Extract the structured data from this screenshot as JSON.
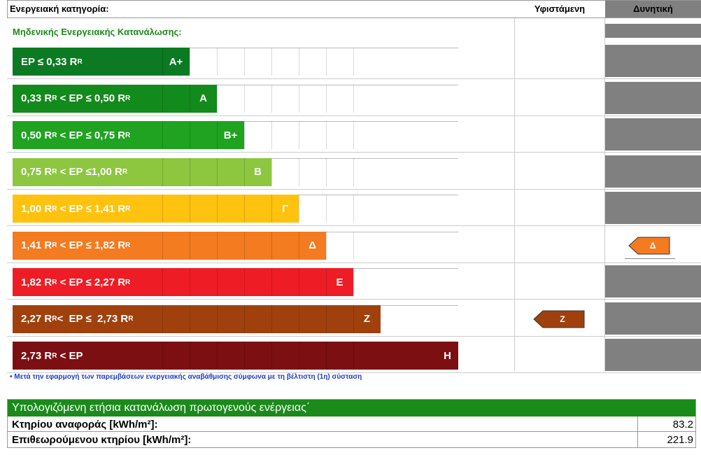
{
  "header": {
    "category_label": "Ενεργειακή κατηγορία:",
    "current_label": "Υφιστάμενη",
    "potential_label": "Δυνητική",
    "zero_label": "Μηδενικής Ενεργειακής Κατανάλωσης:"
  },
  "rows": [
    {
      "label": [
        "EP ≤ 0,33 R",
        "R"
      ],
      "letter": "A+",
      "color": "#0b7a22"
    },
    {
      "label": [
        "0,33 R",
        "R",
        " < EP ≤ 0,50 R",
        "R"
      ],
      "letter": "A",
      "color": "#138a1c"
    },
    {
      "label": [
        "0,50 R",
        "R",
        " < EP ≤ 0,75 R",
        "R"
      ],
      "letter": "B+",
      "color": "#1fa321"
    },
    {
      "label": [
        "0,75 R",
        "R",
        " < EP ≤1,00 R",
        "R"
      ],
      "letter": "B",
      "color": "#8dc63f"
    },
    {
      "label": [
        "1,00 R",
        "R",
        " < EP ≤ 1,41 R",
        "R"
      ],
      "letter": "Γ",
      "color": "#ffc20e"
    },
    {
      "label": [
        "1,41 R",
        "R",
        " < EP ≤ 1,82 R",
        "R"
      ],
      "letter": "Δ",
      "color": "#f47b20"
    },
    {
      "label": [
        "1,82 R",
        "R",
        " < EP ≤ 2,27 R",
        "R"
      ],
      "letter": "Ε",
      "color": "#ee1c25"
    },
    {
      "label": [
        "2,27 R",
        "R",
        "<  EP ≤  2,73 R",
        "R"
      ],
      "letter": "Ζ",
      "color": "#a0410d"
    },
    {
      "label": [
        "2,73 R",
        "R",
        " < EP"
      ],
      "letter": "Η",
      "color": "#7b0f12"
    }
  ],
  "current_rating": "Ζ",
  "current_color": "#a0410d",
  "potential_rating": "Δ",
  "potential_color": "#f47b20",
  "footnote": "• Μετά την εφαρμογή των παρεμβάσεων ενεργειακής αναβάθμισης σύμφωνα με τη βέλτιστη (1η) σύσταση",
  "table": {
    "title": "Υπολογιζόμενη ετήσια κατανάλωση πρωτογενούς ενέργειας΄",
    "rows": [
      [
        "Κτηρίου αναφοράς [kWh/m²]:",
        83.2
      ],
      [
        "Επιθεωρούμενου κτηρίου [kWh/m²]:",
        221.9
      ]
    ]
  }
}
